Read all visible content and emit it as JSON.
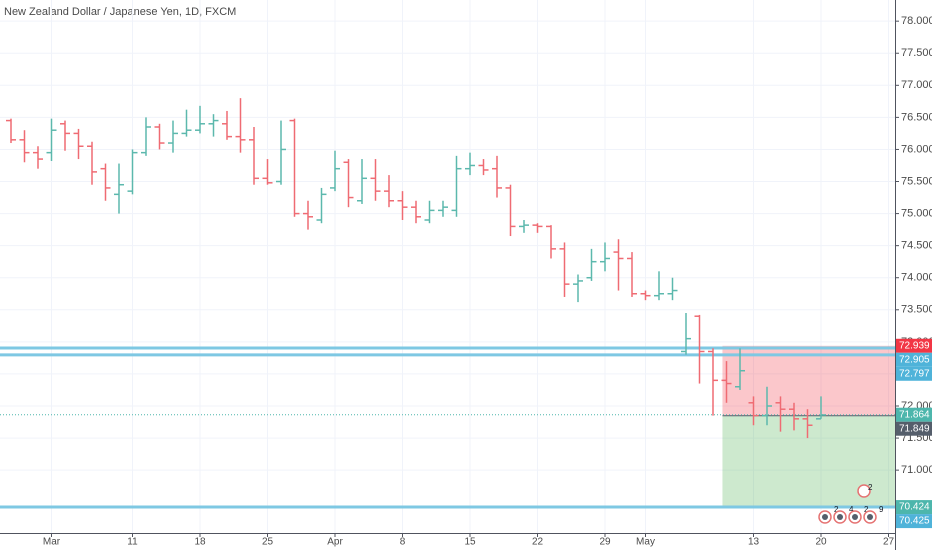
{
  "chart_data": {
    "type": "ohlc",
    "title": "New Zealand Dollar / Japanese Yen, 1D, FXCM",
    "categories": [
      null,
      null,
      null,
      "Mar",
      null,
      null,
      null,
      null,
      null,
      "11",
      null,
      null,
      null,
      null,
      "18",
      null,
      null,
      null,
      null,
      "25",
      null,
      null,
      null,
      null,
      "Apr",
      null,
      null,
      null,
      null,
      "8",
      null,
      null,
      null,
      null,
      "15",
      null,
      null,
      null,
      null,
      "22",
      null,
      null,
      null,
      null,
      "29",
      null,
      null,
      "May",
      null,
      null,
      null,
      null,
      null,
      null,
      null,
      "13",
      null,
      null,
      null,
      null,
      "20",
      null,
      null,
      null,
      null,
      "27"
    ],
    "open": [
      76.45,
      76.15,
      75.95,
      75.95,
      76.4,
      76.25,
      76.05,
      75.7,
      75.3,
      75.35,
      75.95,
      76.35,
      76.1,
      76.25,
      76.3,
      76.4,
      76.4,
      76.2,
      76.15,
      75.55,
      75.5,
      76.45,
      75.0,
      74.9,
      75.4,
      75.8,
      75.2,
      75.55,
      75.35,
      75.2,
      75.1,
      74.9,
      75.05,
      75.05,
      75.7,
      75.75,
      75.7,
      75.4,
      74.8,
      74.82,
      74.8,
      74.45,
      73.9,
      74.0,
      74.25,
      74.4,
      74.3,
      73.75,
      73.72,
      73.75,
      72.85,
      73.4,
      72.85,
      72.4,
      72.3,
      72.05,
      71.85,
      72.05,
      71.95,
      71.8,
      71.8,
      null,
      null,
      null,
      null,
      null
    ],
    "high": [
      76.48,
      76.3,
      76.05,
      76.48,
      76.45,
      76.32,
      76.12,
      75.78,
      75.78,
      76.0,
      76.5,
      76.4,
      76.45,
      76.62,
      76.68,
      76.55,
      76.6,
      76.8,
      76.35,
      75.85,
      76.45,
      76.48,
      75.2,
      75.4,
      75.98,
      75.85,
      75.85,
      75.85,
      75.6,
      75.35,
      75.2,
      75.2,
      75.2,
      75.9,
      75.95,
      75.85,
      75.9,
      75.45,
      74.9,
      74.85,
      74.82,
      74.55,
      74.05,
      74.45,
      74.55,
      74.6,
      74.4,
      73.8,
      74.1,
      74.0,
      73.45,
      73.42,
      72.9,
      72.7,
      72.9,
      72.15,
      72.3,
      72.15,
      72.05,
      71.95,
      72.15,
      null,
      null,
      null,
      null,
      null
    ],
    "low": [
      76.1,
      75.8,
      75.7,
      75.82,
      75.98,
      75.85,
      75.45,
      75.2,
      75.0,
      75.3,
      75.9,
      76.0,
      75.95,
      76.2,
      76.25,
      76.2,
      76.15,
      75.95,
      75.45,
      75.45,
      75.45,
      74.95,
      74.75,
      74.85,
      75.35,
      75.1,
      75.15,
      75.2,
      75.1,
      74.9,
      74.85,
      74.85,
      74.95,
      74.95,
      75.6,
      75.6,
      75.25,
      74.65,
      74.7,
      74.7,
      74.3,
      73.7,
      73.62,
      73.95,
      74.1,
      73.8,
      73.7,
      73.65,
      73.65,
      73.65,
      72.8,
      72.35,
      71.85,
      72.05,
      72.25,
      71.7,
      71.7,
      71.6,
      71.62,
      71.5,
      71.8,
      null,
      null,
      null,
      null,
      null
    ],
    "close": [
      76.15,
      75.95,
      75.85,
      76.3,
      76.25,
      76.05,
      75.65,
      75.4,
      75.45,
      75.95,
      76.35,
      76.1,
      76.25,
      76.3,
      76.4,
      76.45,
      76.2,
      76.15,
      75.55,
      75.48,
      76.0,
      75.0,
      74.95,
      75.3,
      75.7,
      75.25,
      75.55,
      75.35,
      75.2,
      75.1,
      74.95,
      75.05,
      75.1,
      75.7,
      75.75,
      75.68,
      75.4,
      74.8,
      74.82,
      74.8,
      74.45,
      73.9,
      73.95,
      74.25,
      74.3,
      74.3,
      73.75,
      73.72,
      73.75,
      73.8,
      73.05,
      72.85,
      72.4,
      72.35,
      72.55,
      71.85,
      72.0,
      71.95,
      71.8,
      71.7,
      71.86,
      null,
      null,
      null,
      null,
      null
    ],
    "up_color": "#5cb8ad",
    "down_color": "#ef6b73",
    "ylim": [
      70.02,
      78.33
    ],
    "yticks": [
      {
        "value": 71,
        "label": "71.000"
      },
      {
        "value": 71.5,
        "label": "71.500"
      },
      {
        "value": 72,
        "label": "72.000"
      },
      {
        "value": 72.5,
        "label": "72.500"
      },
      {
        "value": 73,
        "label": "73.000"
      },
      {
        "value": 73.5,
        "label": "73.500"
      },
      {
        "value": 74,
        "label": "74.000"
      },
      {
        "value": 74.5,
        "label": "74.500"
      },
      {
        "value": 75,
        "label": "75.000"
      },
      {
        "value": 75.5,
        "label": "75.500"
      },
      {
        "value": 76,
        "label": "76.000"
      },
      {
        "value": 76.5,
        "label": "76.500"
      },
      {
        "value": 77,
        "label": "77.000"
      },
      {
        "value": 77.5,
        "label": "77.500"
      },
      {
        "value": 78,
        "label": "78.000"
      }
    ],
    "grid": true,
    "hlines": [
      72.905,
      72.797,
      70.425
    ],
    "hline_color": "#7ec8e3",
    "last_price": 71.864,
    "position": {
      "stop": 72.939,
      "entry": 71.849,
      "target": 70.424
    },
    "price_labels": [
      {
        "value": 72.939,
        "color": "#f23645"
      },
      {
        "value": 72.905,
        "color": "#4fb3d9"
      },
      {
        "value": 72.797,
        "color": "#4fb3d9"
      },
      {
        "value": 71.864,
        "color": "#4db6ac"
      },
      {
        "value": 71.849,
        "color": "#555e6b"
      },
      {
        "value": 70.424,
        "color": "#4db6ac"
      },
      {
        "value": 70.425,
        "color": "#4fb3d9"
      }
    ],
    "events": [
      "2",
      "4",
      "2",
      "9"
    ],
    "event_top": "2"
  }
}
